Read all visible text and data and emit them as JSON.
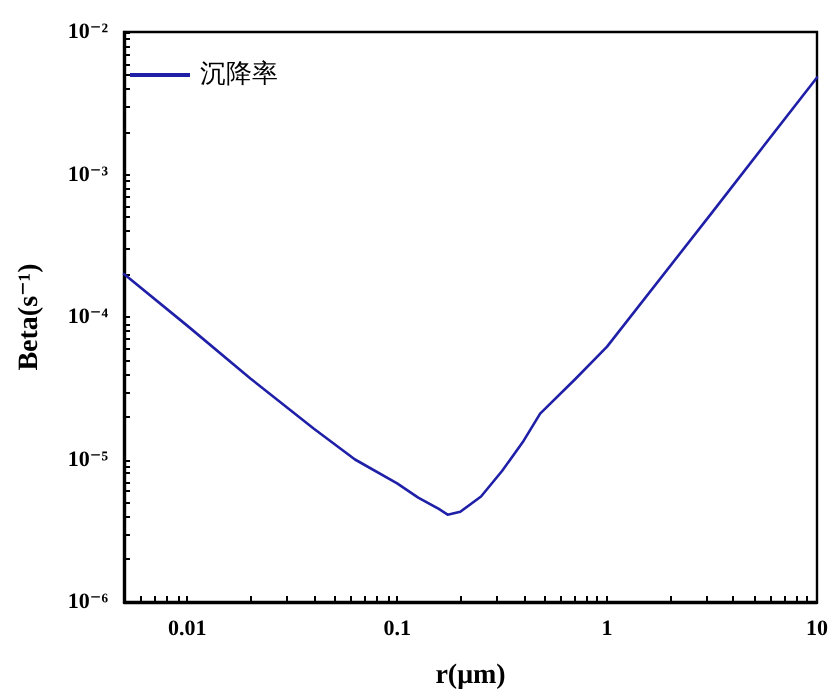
{
  "chart_data": {
    "type": "line",
    "xlabel": "r(μm)",
    "ylabel": "Beta(s⁻¹)",
    "log": "xy",
    "grid": false,
    "legend": "top left",
    "marker": "none",
    "line_style": "solid",
    "xlim": [
      0.005,
      10
    ],
    "ylim": [
      1e-06,
      0.01
    ],
    "xticks": [
      {
        "value": 0.006,
        "label": null
      },
      {
        "value": 0.007,
        "label": null
      },
      {
        "value": 0.008,
        "label": null
      },
      {
        "value": 0.009,
        "label": null
      },
      {
        "value": 0.01,
        "label": "0.01"
      },
      {
        "value": 0.02,
        "label": null
      },
      {
        "value": 0.03,
        "label": null
      },
      {
        "value": 0.04,
        "label": null
      },
      {
        "value": 0.05,
        "label": null
      },
      {
        "value": 0.06,
        "label": null
      },
      {
        "value": 0.07,
        "label": null
      },
      {
        "value": 0.08,
        "label": null
      },
      {
        "value": 0.09,
        "label": null
      },
      {
        "value": 0.1,
        "label": "0.1"
      },
      {
        "value": 0.2,
        "label": null
      },
      {
        "value": 0.3,
        "label": null
      },
      {
        "value": 0.4,
        "label": null
      },
      {
        "value": 0.5,
        "label": null
      },
      {
        "value": 0.6,
        "label": null
      },
      {
        "value": 0.7,
        "label": null
      },
      {
        "value": 0.8,
        "label": null
      },
      {
        "value": 0.9,
        "label": null
      },
      1,
      {
        "value": 2,
        "label": null
      },
      {
        "value": 3,
        "label": null
      },
      {
        "value": 4,
        "label": null
      },
      {
        "value": 5,
        "label": null
      },
      {
        "value": 6,
        "label": null
      },
      {
        "value": 7,
        "label": null
      },
      {
        "value": 8,
        "label": null
      },
      {
        "value": 9,
        "label": null
      },
      10
    ],
    "yticks": [
      {
        "value": 1e-06,
        "label": "10⁻⁶"
      },
      {
        "value": 2e-06,
        "label": null
      },
      {
        "value": 3e-06,
        "label": null
      },
      {
        "value": 4e-06,
        "label": null
      },
      {
        "value": 5e-06,
        "label": null
      },
      {
        "value": 6e-06,
        "label": null
      },
      {
        "value": 7e-06,
        "label": null
      },
      {
        "value": 8e-06,
        "label": null
      },
      {
        "value": 9e-06,
        "label": null
      },
      {
        "value": 1e-05,
        "label": "10⁻⁵"
      },
      {
        "value": 2e-05,
        "label": null
      },
      {
        "value": 3e-05,
        "label": null
      },
      {
        "value": 4e-05,
        "label": null
      },
      {
        "value": 5e-05,
        "label": null
      },
      {
        "value": 6e-05,
        "label": null
      },
      {
        "value": 7e-05,
        "label": null
      },
      {
        "value": 8e-05,
        "label": null
      },
      {
        "value": 9e-05,
        "label": null
      },
      {
        "value": 0.0001,
        "label": "10⁻⁴"
      },
      {
        "value": 0.0002,
        "label": null
      },
      {
        "value": 0.0003,
        "label": null
      },
      {
        "value": 0.0004,
        "label": null
      },
      {
        "value": 0.0005,
        "label": null
      },
      {
        "value": 0.0006,
        "label": null
      },
      {
        "value": 0.0007,
        "label": null
      },
      {
        "value": 0.0008,
        "label": null
      },
      {
        "value": 0.0009,
        "label": null
      },
      {
        "value": 0.001,
        "label": "10⁻³"
      },
      {
        "value": 0.002,
        "label": null
      },
      {
        "value": 0.003,
        "label": null
      },
      {
        "value": 0.004,
        "label": null
      },
      {
        "value": 0.005,
        "label": null
      },
      {
        "value": 0.006,
        "label": null
      },
      {
        "value": 0.007,
        "label": null
      },
      {
        "value": 0.008,
        "label": null
      },
      {
        "value": 0.009,
        "label": null
      },
      {
        "value": 0.01,
        "label": "10⁻²"
      }
    ],
    "x": [
      0.005,
      0.01,
      0.02,
      0.04,
      0.063,
      0.1,
      0.126,
      0.158,
      0.174,
      0.2,
      0.251,
      0.316,
      0.4,
      0.48,
      0.71,
      1,
      3.16,
      10
    ],
    "series": [
      {
        "name": "沉降率",
        "color": "#1f1fa8",
        "values": [
          0.0002,
          8.7e-05,
          3.7e-05,
          1.65e-05,
          1e-05,
          6.8e-06,
          5.4e-06,
          4.5e-06,
          4.1e-06,
          4.3e-06,
          5.5e-06,
          8.3e-06,
          1.35e-05,
          2.1e-05,
          3.7e-05,
          6.2e-05,
          0.00054,
          0.0048
        ]
      }
    ]
  }
}
